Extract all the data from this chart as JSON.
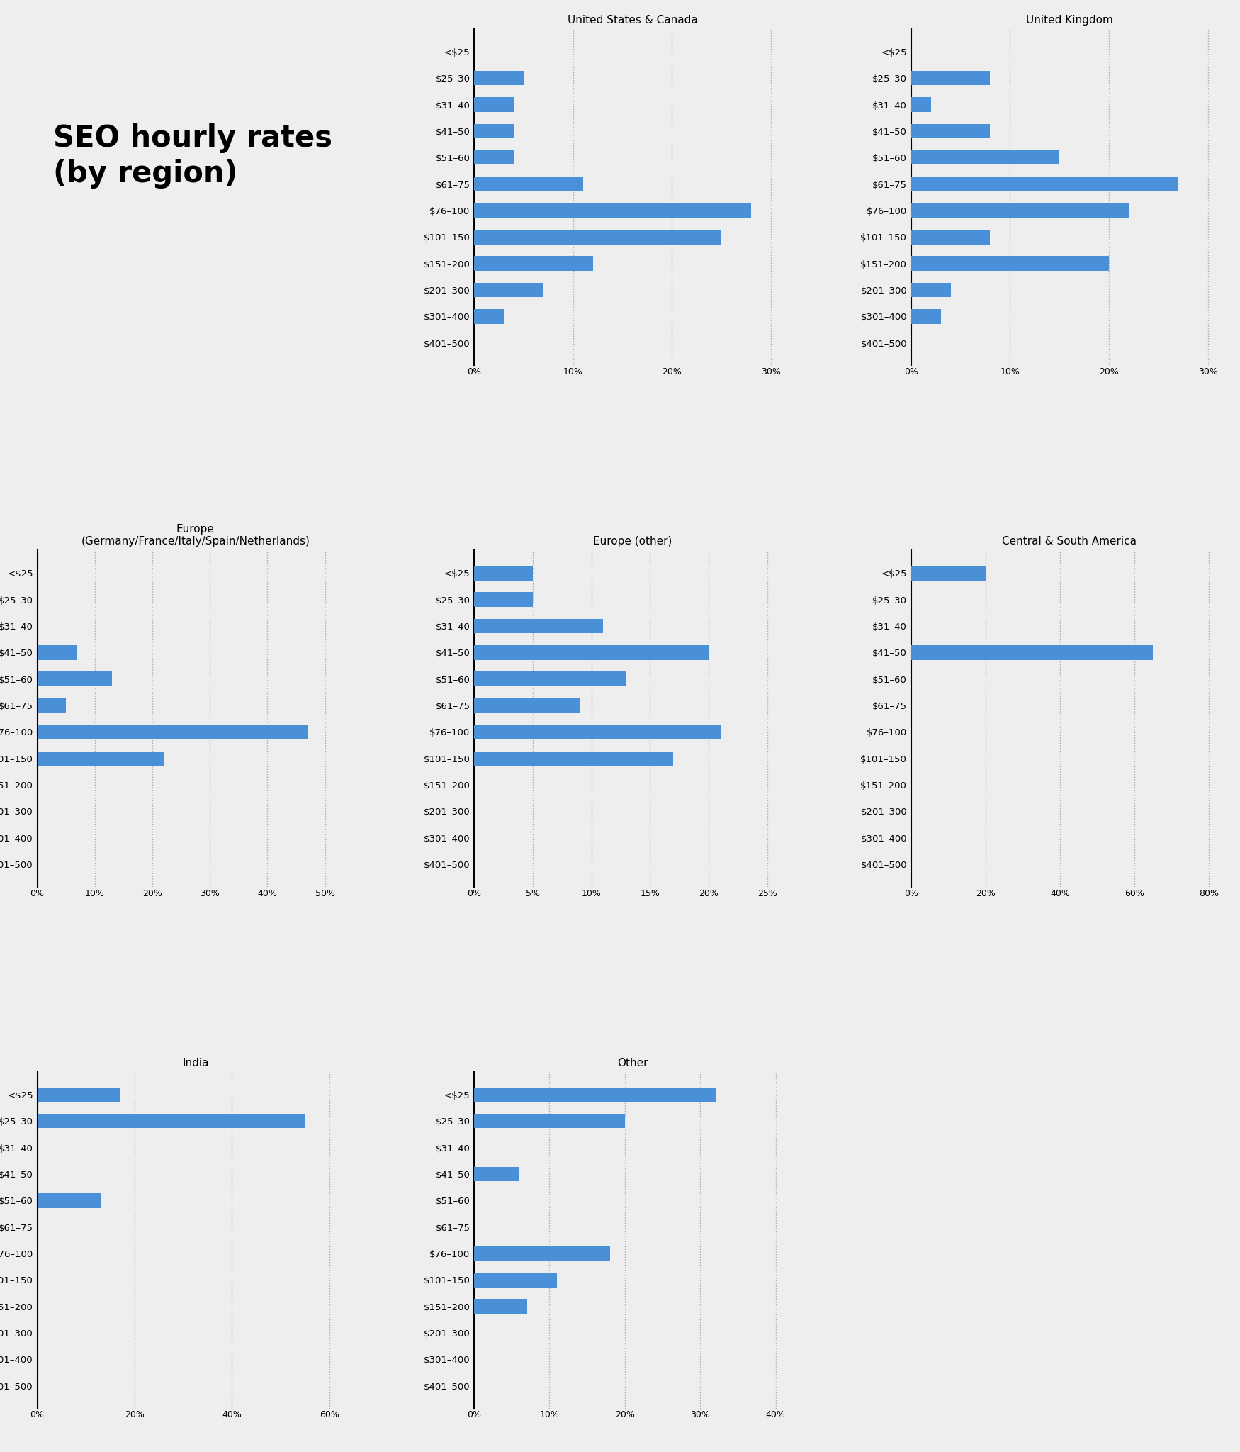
{
  "categories": [
    "<$25",
    "$25–30",
    "$31–40",
    "$41–50",
    "$51–60",
    "$61–75",
    "$76–100",
    "$101–150",
    "$151–200",
    "$201–300",
    "$301–400",
    "$401–500"
  ],
  "regions": [
    {
      "title": "United States & Canada",
      "values": [
        0,
        5,
        4,
        4,
        4,
        11,
        28,
        25,
        12,
        7,
        3,
        0
      ],
      "xlim": 32,
      "xticks": [
        0,
        10,
        20,
        30
      ],
      "row": 0,
      "col": 1
    },
    {
      "title": "United Kingdom",
      "values": [
        0,
        8,
        2,
        8,
        15,
        27,
        22,
        8,
        20,
        4,
        3,
        0
      ],
      "xlim": 32,
      "xticks": [
        0,
        10,
        20,
        30
      ],
      "row": 0,
      "col": 2
    },
    {
      "title": "Europe\n(Germany/France/Italy/Spain/Netherlands)",
      "values": [
        0,
        0,
        0,
        7,
        13,
        5,
        47,
        22,
        0,
        0,
        0,
        0
      ],
      "xlim": 55,
      "xticks": [
        0,
        10,
        20,
        30,
        40,
        50
      ],
      "row": 1,
      "col": 0
    },
    {
      "title": "Europe (other)",
      "values": [
        5,
        5,
        11,
        20,
        13,
        9,
        21,
        17,
        0,
        0,
        0,
        0
      ],
      "xlim": 27,
      "xticks": [
        0,
        5,
        10,
        15,
        20,
        25
      ],
      "row": 1,
      "col": 1
    },
    {
      "title": "Central & South America",
      "values": [
        20,
        0,
        0,
        65,
        0,
        0,
        0,
        0,
        0,
        0,
        0,
        0
      ],
      "xlim": 85,
      "xticks": [
        0,
        20,
        40,
        60,
        80
      ],
      "row": 1,
      "col": 2
    },
    {
      "title": "India",
      "values": [
        17,
        55,
        0,
        0,
        13,
        0,
        0,
        0,
        0,
        0,
        0,
        0
      ],
      "xlim": 65,
      "xticks": [
        0,
        20,
        40,
        60
      ],
      "row": 2,
      "col": 0
    },
    {
      "title": "Other",
      "values": [
        32,
        20,
        0,
        6,
        0,
        0,
        18,
        11,
        7,
        0,
        0,
        0
      ],
      "xlim": 42,
      "xticks": [
        0,
        10,
        20,
        30,
        40
      ],
      "row": 2,
      "col": 1
    }
  ],
  "bar_color": "#4a90d9",
  "bg_color": "#eeeeee",
  "title_main_line1": "SEO hourly rates",
  "title_main_line2": "(by region)",
  "bar_height": 0.55,
  "label_fontsize": 9.5,
  "title_fontsize": 11,
  "tick_fontsize": 9
}
